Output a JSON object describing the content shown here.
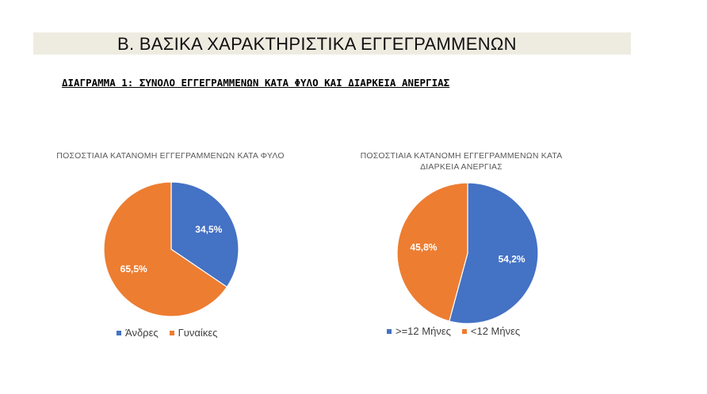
{
  "header": {
    "section_title": "Β.  ΒΑΣΙΚΑ ΧΑΡΑΚΤΗΡΙΣΤΙΚΑ ΕΓΓΕΓΡΑΜΜΕΝΩΝ",
    "diagram_title": "ΔΙΑΓΡΑΜΜΑ 1: ΣΥΝΟΛΟ ΕΓΓΕΓΡΑΜΜΕΝΩΝ ΚΑΤΑ ΦΥΛΟ ΚΑΙ ΔΙΑΡΚΕΙΑ ΑΝΕΡΓΙΑΣ"
  },
  "colors": {
    "blue": "#4472c4",
    "orange": "#ed7d31",
    "banner": "#eeece1"
  },
  "chart_data": [
    {
      "type": "pie",
      "title": "ΠΟΣΟΣΤΙΑΙΑ ΚΑΤΑΝΟΜΗ ΕΓΓΕΓΡΑΜΜΕΝΩΝ ΚΑΤΑ ΦΥΛΟ",
      "categories": [
        "Άνδρες",
        "Γυναίκες"
      ],
      "values": [
        34.5,
        65.5
      ],
      "labels": [
        "34,5%",
        "65,5%"
      ],
      "colors": [
        "#4472c4",
        "#ed7d31"
      ],
      "legend": "bottom"
    },
    {
      "type": "pie",
      "title": "ΠΟΣΟΣΤΙΑΙΑ ΚΑΤΑΝΟΜΗ ΕΓΓΕΓΡΑΜΜΕΝΩΝ ΚΑΤΑ ΔΙΑΡΚΕΙΑ ΑΝΕΡΓΙΑΣ",
      "categories": [
        ">=12 Μήνες",
        "<12 Μήνες"
      ],
      "values": [
        54.2,
        45.8
      ],
      "labels": [
        "54,2%",
        "45,8%"
      ],
      "colors": [
        "#4472c4",
        "#ed7d31"
      ],
      "legend": "bottom"
    }
  ]
}
